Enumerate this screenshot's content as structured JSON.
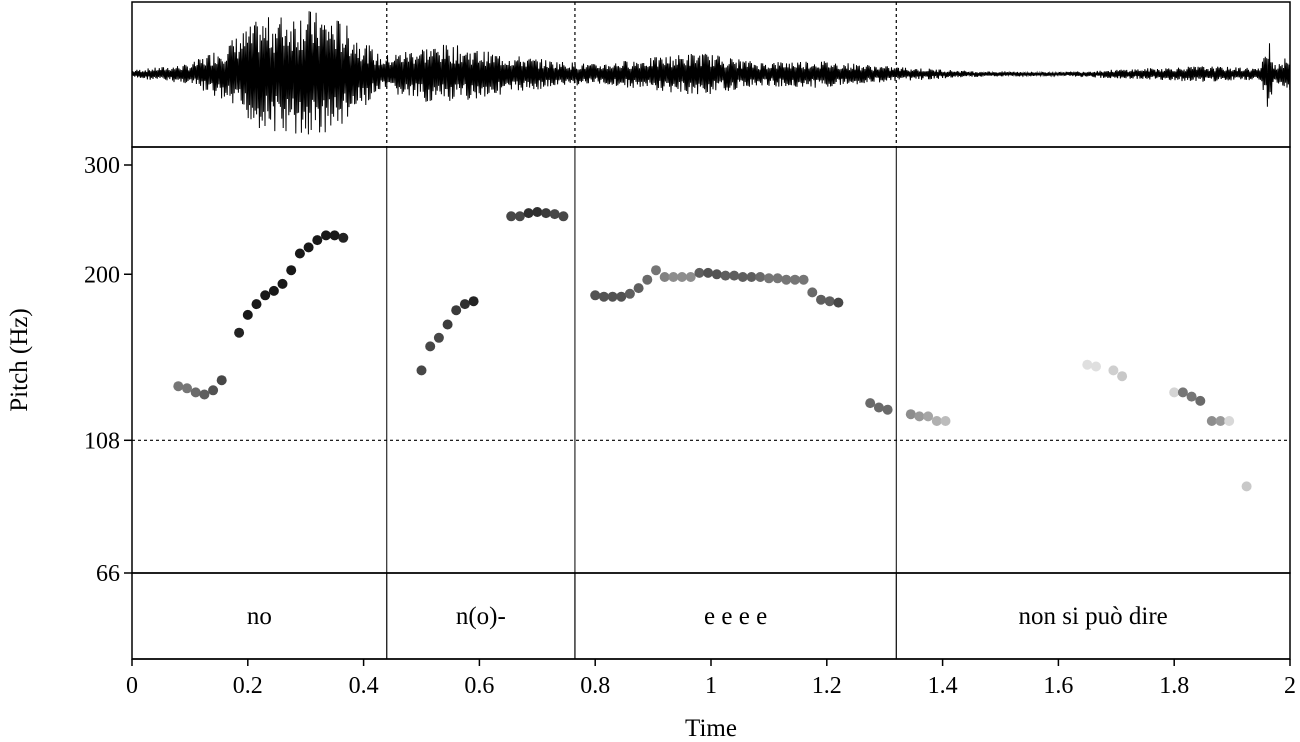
{
  "chart_data": {
    "type": "scatter",
    "xlabel": "Time",
    "ylabel": "Pitch (Hz)",
    "xlim": [
      0,
      2
    ],
    "x_ticks": [
      "0",
      "0.2",
      "0.4",
      "0.6",
      "0.8",
      "1",
      "1.2",
      "1.4",
      "1.6",
      "1.8",
      "2"
    ],
    "y_scale": "log",
    "ylim": [
      66,
      320
    ],
    "y_ticks": [
      {
        "value": 300,
        "label": "300"
      },
      {
        "value": 200,
        "label": "200"
      },
      {
        "value": 108,
        "label": "108"
      },
      {
        "value": 66,
        "label": "66"
      }
    ],
    "reference_line": {
      "value": 108,
      "style": "dotted"
    },
    "waveform": {
      "shown": true,
      "description_color": "#000000"
    },
    "segments": [
      {
        "label": "no",
        "start": 0,
        "end": 0.44
      },
      {
        "label": "n(o)-",
        "start": 0.44,
        "end": 0.765
      },
      {
        "label": "e e e e",
        "start": 0.765,
        "end": 1.32
      },
      {
        "label": "non si può dire",
        "start": 1.32,
        "end": 2
      }
    ],
    "pitch_points": [
      {
        "t": 0.08,
        "hz": 132,
        "shade": 0.5
      },
      {
        "t": 0.095,
        "hz": 131,
        "shade": 0.5
      },
      {
        "t": 0.11,
        "hz": 129,
        "shade": 0.45
      },
      {
        "t": 0.125,
        "hz": 128,
        "shade": 0.4
      },
      {
        "t": 0.14,
        "hz": 130,
        "shade": 0.35
      },
      {
        "t": 0.155,
        "hz": 135,
        "shade": 0.3
      },
      {
        "t": 0.185,
        "hz": 161,
        "shade": 0.15
      },
      {
        "t": 0.2,
        "hz": 172,
        "shade": 0.1
      },
      {
        "t": 0.215,
        "hz": 179,
        "shade": 0.1
      },
      {
        "t": 0.23,
        "hz": 185,
        "shade": 0.1
      },
      {
        "t": 0.245,
        "hz": 188,
        "shade": 0.1
      },
      {
        "t": 0.26,
        "hz": 193,
        "shade": 0.1
      },
      {
        "t": 0.275,
        "hz": 203,
        "shade": 0.1
      },
      {
        "t": 0.29,
        "hz": 216,
        "shade": 0.1
      },
      {
        "t": 0.305,
        "hz": 221,
        "shade": 0.1
      },
      {
        "t": 0.32,
        "hz": 227,
        "shade": 0.1
      },
      {
        "t": 0.335,
        "hz": 231,
        "shade": 0.1
      },
      {
        "t": 0.35,
        "hz": 231,
        "shade": 0.1
      },
      {
        "t": 0.365,
        "hz": 229,
        "shade": 0.15
      },
      {
        "t": 0.5,
        "hz": 140,
        "shade": 0.3
      },
      {
        "t": 0.515,
        "hz": 153,
        "shade": 0.3
      },
      {
        "t": 0.53,
        "hz": 158,
        "shade": 0.3
      },
      {
        "t": 0.545,
        "hz": 166,
        "shade": 0.25
      },
      {
        "t": 0.56,
        "hz": 175,
        "shade": 0.25
      },
      {
        "t": 0.575,
        "hz": 179,
        "shade": 0.2
      },
      {
        "t": 0.59,
        "hz": 181,
        "shade": 0.15
      },
      {
        "t": 0.655,
        "hz": 248,
        "shade": 0.3
      },
      {
        "t": 0.67,
        "hz": 248,
        "shade": 0.3
      },
      {
        "t": 0.685,
        "hz": 251,
        "shade": 0.2
      },
      {
        "t": 0.7,
        "hz": 252,
        "shade": 0.2
      },
      {
        "t": 0.715,
        "hz": 251,
        "shade": 0.25
      },
      {
        "t": 0.73,
        "hz": 250,
        "shade": 0.3
      },
      {
        "t": 0.745,
        "hz": 248,
        "shade": 0.3
      },
      {
        "t": 0.8,
        "hz": 185,
        "shade": 0.35
      },
      {
        "t": 0.815,
        "hz": 184,
        "shade": 0.35
      },
      {
        "t": 0.83,
        "hz": 184,
        "shade": 0.35
      },
      {
        "t": 0.845,
        "hz": 184,
        "shade": 0.35
      },
      {
        "t": 0.86,
        "hz": 186,
        "shade": 0.4
      },
      {
        "t": 0.875,
        "hz": 190,
        "shade": 0.4
      },
      {
        "t": 0.89,
        "hz": 196,
        "shade": 0.45
      },
      {
        "t": 0.905,
        "hz": 203,
        "shade": 0.5
      },
      {
        "t": 0.92,
        "hz": 198,
        "shade": 0.55
      },
      {
        "t": 0.935,
        "hz": 198,
        "shade": 0.6
      },
      {
        "t": 0.95,
        "hz": 198,
        "shade": 0.6
      },
      {
        "t": 0.965,
        "hz": 198,
        "shade": 0.6
      },
      {
        "t": 0.98,
        "hz": 201,
        "shade": 0.4
      },
      {
        "t": 0.995,
        "hz": 201,
        "shade": 0.35
      },
      {
        "t": 1.01,
        "hz": 200,
        "shade": 0.35
      },
      {
        "t": 1.025,
        "hz": 199,
        "shade": 0.4
      },
      {
        "t": 1.04,
        "hz": 199,
        "shade": 0.4
      },
      {
        "t": 1.055,
        "hz": 198,
        "shade": 0.4
      },
      {
        "t": 1.07,
        "hz": 198,
        "shade": 0.4
      },
      {
        "t": 1.085,
        "hz": 198,
        "shade": 0.45
      },
      {
        "t": 1.1,
        "hz": 197,
        "shade": 0.5
      },
      {
        "t": 1.115,
        "hz": 197,
        "shade": 0.5
      },
      {
        "t": 1.13,
        "hz": 196,
        "shade": 0.5
      },
      {
        "t": 1.145,
        "hz": 196,
        "shade": 0.5
      },
      {
        "t": 1.16,
        "hz": 196,
        "shade": 0.5
      },
      {
        "t": 1.175,
        "hz": 187,
        "shade": 0.45
      },
      {
        "t": 1.19,
        "hz": 182,
        "shade": 0.4
      },
      {
        "t": 1.205,
        "hz": 181,
        "shade": 0.4
      },
      {
        "t": 1.22,
        "hz": 180,
        "shade": 0.3
      },
      {
        "t": 1.275,
        "hz": 124,
        "shade": 0.45
      },
      {
        "t": 1.29,
        "hz": 122,
        "shade": 0.45
      },
      {
        "t": 1.305,
        "hz": 121,
        "shade": 0.45
      },
      {
        "t": 1.345,
        "hz": 119,
        "shade": 0.6
      },
      {
        "t": 1.36,
        "hz": 118,
        "shade": 0.65
      },
      {
        "t": 1.375,
        "hz": 118,
        "shade": 0.7
      },
      {
        "t": 1.39,
        "hz": 116,
        "shade": 0.75
      },
      {
        "t": 1.405,
        "hz": 116,
        "shade": 0.8
      },
      {
        "t": 1.65,
        "hz": 143,
        "shade": 0.95
      },
      {
        "t": 1.665,
        "hz": 142,
        "shade": 0.95
      },
      {
        "t": 1.695,
        "hz": 140,
        "shade": 0.88
      },
      {
        "t": 1.71,
        "hz": 137,
        "shade": 0.85
      },
      {
        "t": 1.8,
        "hz": 129,
        "shade": 0.9
      },
      {
        "t": 1.815,
        "hz": 129,
        "shade": 0.5
      },
      {
        "t": 1.83,
        "hz": 127,
        "shade": 0.5
      },
      {
        "t": 1.845,
        "hz": 125,
        "shade": 0.45
      },
      {
        "t": 1.865,
        "hz": 116,
        "shade": 0.6
      },
      {
        "t": 1.88,
        "hz": 116,
        "shade": 0.65
      },
      {
        "t": 1.895,
        "hz": 116,
        "shade": 0.92
      },
      {
        "t": 1.925,
        "hz": 91,
        "shade": 0.85
      }
    ]
  }
}
